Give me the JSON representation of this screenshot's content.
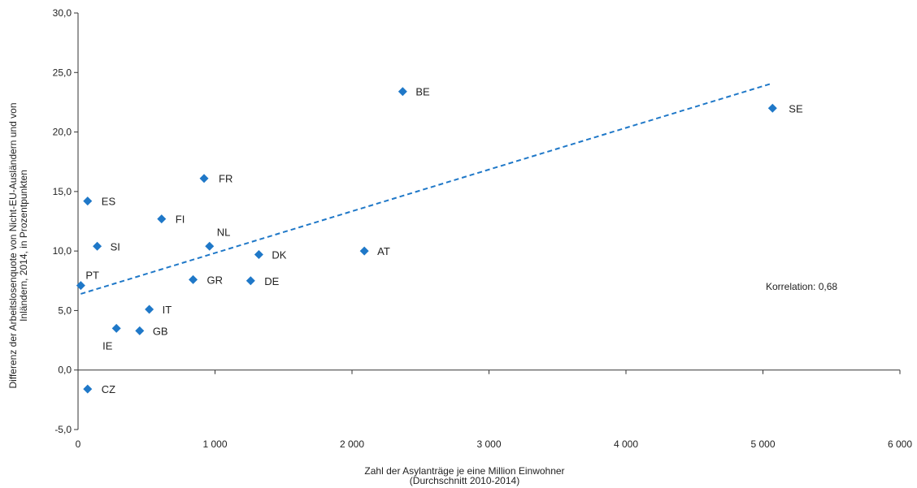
{
  "chart_data": {
    "type": "scatter",
    "title": "",
    "xlabel": [
      "Zahl der Asylanträge je eine Million Einwohner",
      "(Durchschnitt 2010-2014)"
    ],
    "ylabel": [
      "Differenz der Arbeitslosenquote von Nicht-EU-Ausländern und von",
      "Inländern, 2014, in Prozentpunkten"
    ],
    "xlim": [
      0,
      6000
    ],
    "ylim": [
      -5,
      30
    ],
    "x_ticks": [
      0,
      1000,
      2000,
      3000,
      4000,
      5000,
      6000
    ],
    "x_tick_labels": [
      "0",
      "1 000",
      "2 000",
      "3 000",
      "4 000",
      "5 000",
      "6 000"
    ],
    "y_ticks": [
      -5,
      0,
      5,
      10,
      15,
      20,
      25,
      30
    ],
    "y_tick_labels": [
      "-5,0",
      "0,0",
      "5,0",
      "10,0",
      "15,0",
      "20,0",
      "25,0",
      "30,0"
    ],
    "grid": false,
    "legend": "none",
    "colors": {
      "points": "#1f78c8",
      "trend": "#1f78c8",
      "axis": "#333333"
    },
    "points": [
      {
        "label": "BE",
        "x": 2370,
        "y": 23.4
      },
      {
        "label": "SE",
        "x": 5070,
        "y": 22.0
      },
      {
        "label": "FR",
        "x": 920,
        "y": 16.1
      },
      {
        "label": "ES",
        "x": 70,
        "y": 14.2
      },
      {
        "label": "FI",
        "x": 610,
        "y": 12.7
      },
      {
        "label": "SI",
        "x": 140,
        "y": 10.4
      },
      {
        "label": "NL",
        "x": 960,
        "y": 10.4
      },
      {
        "label": "DK",
        "x": 1320,
        "y": 9.7
      },
      {
        "label": "AT",
        "x": 2090,
        "y": 10.0
      },
      {
        "label": "PT",
        "x": 20,
        "y": 7.1
      },
      {
        "label": "GR",
        "x": 840,
        "y": 7.6
      },
      {
        "label": "DE",
        "x": 1260,
        "y": 7.5
      },
      {
        "label": "IT",
        "x": 520,
        "y": 5.1
      },
      {
        "label": "GB",
        "x": 450,
        "y": 3.3
      },
      {
        "label": "IE",
        "x": 280,
        "y": 3.5
      },
      {
        "label": "CZ",
        "x": 70,
        "y": -1.6
      }
    ],
    "trendline": {
      "style": "dashed",
      "x": [
        20,
        5070
      ],
      "y": [
        6.4,
        24.1
      ]
    },
    "annotations": [
      {
        "text": "Korrelation: 0,68"
      }
    ]
  }
}
